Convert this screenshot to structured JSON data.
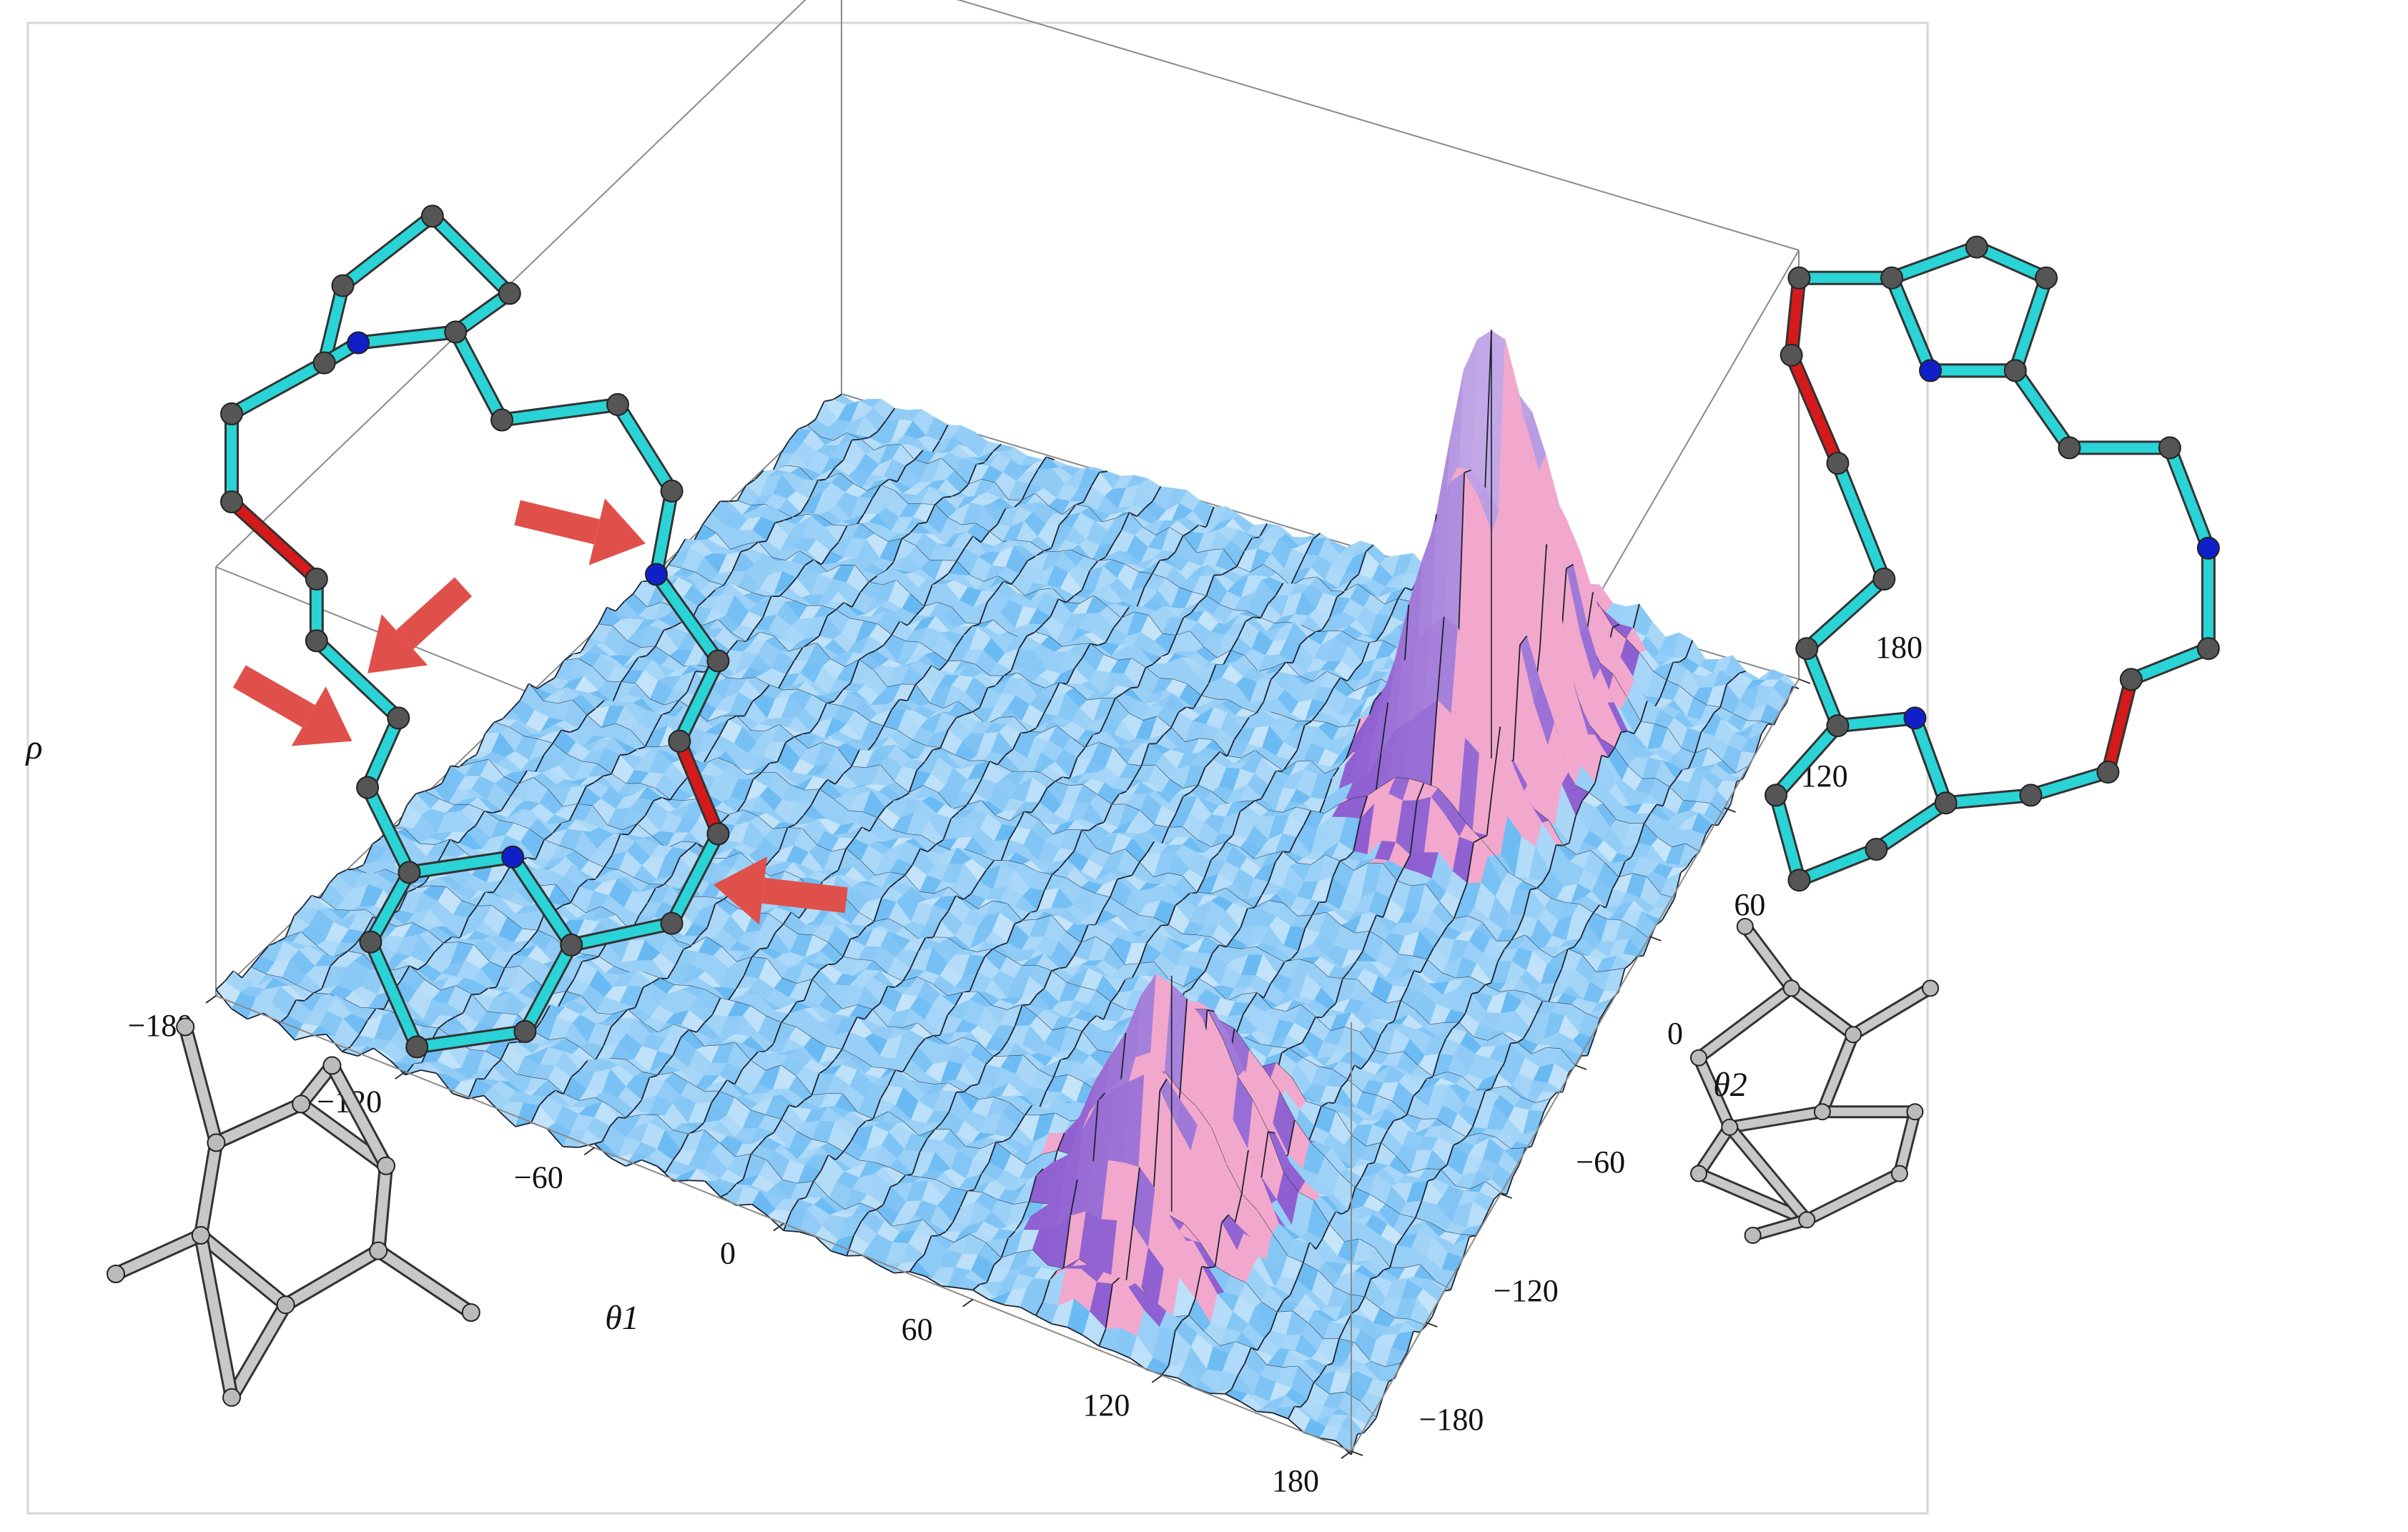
{
  "chart_data": {
    "type": "surface3d",
    "xlabel": "θ1",
    "ylabel": "θ2",
    "zlabel": "ρ",
    "xlim": [
      -180,
      180
    ],
    "ylim": [
      -180,
      180
    ],
    "zlim": [
      0,
      1
    ],
    "xticks": [
      {
        "value": -180,
        "label": "−180"
      },
      {
        "value": -120,
        "label": "−120"
      },
      {
        "value": -60,
        "label": "−60"
      },
      0,
      60,
      120,
      180
    ],
    "yticks": [
      {
        "value": -180,
        "label": "−180"
      },
      {
        "value": -120,
        "label": "−120"
      },
      {
        "value": -60,
        "label": "−60"
      },
      0,
      60,
      120,
      180
    ],
    "peaks": [
      {
        "x": 95,
        "y": -115,
        "z": 0.55
      },
      {
        "x": 100,
        "y": 110,
        "z": 1
      }
    ],
    "color": "#a6d8f7",
    "peak_color": "#f2a8cc",
    "mesh_color": "#1c2230"
  }
}
